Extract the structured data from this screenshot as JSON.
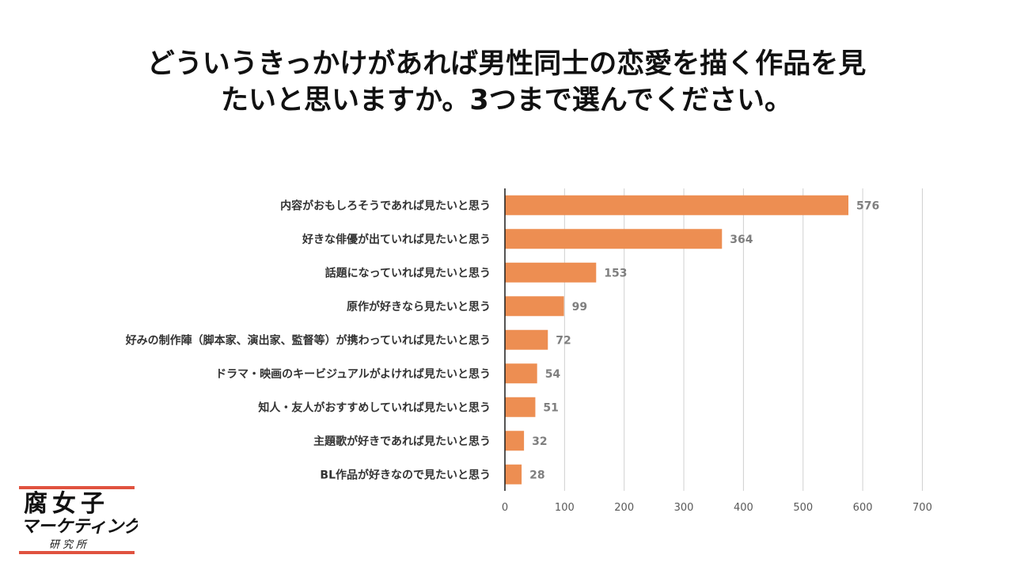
{
  "title": {
    "line1": "どういうきっかけがあれば男性同士の恋愛を描く作品を見",
    "line2": "たいと思いますか。3つまで選んでください。"
  },
  "logo": {
    "line1": "腐女子",
    "line2": "マーケティング",
    "line3": "研究所",
    "accent_color": "#e0523f"
  },
  "chart_data": {
    "type": "bar",
    "orientation": "horizontal",
    "title": "どういうきっかけがあれば男性同士の恋愛を描く作品を見たいと思いますか。3つまで選んでください。",
    "categories": [
      "内容がおもしろそうであれば見たいと思う",
      "好きな俳優が出ていれば見たいと思う",
      "話題になっていれば見たいと思う",
      "原作が好きなら見たいと思う",
      "好みの制作陣（脚本家、演出家、監督等）が携わっていれば見たいと思う",
      "ドラマ・映画のキービジュアルがよければ見たいと思う",
      "知人・友人がおすすめしていれば見たいと思う",
      "主題歌が好きであれば見たいと思う",
      "BL作品が好きなので見たいと思う"
    ],
    "values": [
      576,
      364,
      153,
      99,
      72,
      54,
      51,
      32,
      28
    ],
    "xlim": [
      0,
      700
    ],
    "xticks": [
      "0",
      "100",
      "200",
      "300",
      "400",
      "500",
      "600",
      "700"
    ],
    "grid": true,
    "legend": "none",
    "bar_color": "#ed8e52",
    "data_label_color": "#7f7f7f"
  }
}
